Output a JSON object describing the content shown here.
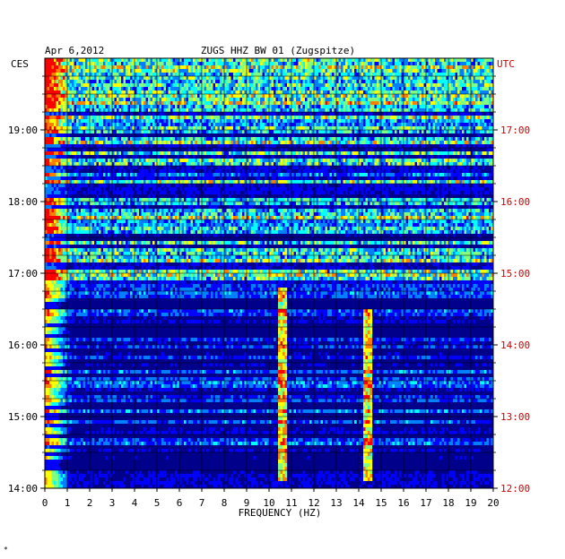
{
  "chart_data": {
    "type": "heatmap",
    "title": "ZUGS HHZ BW 01 (Zugspitze)",
    "date": "Apr 6,2012",
    "xlabel": "FREQUENCY (HZ)",
    "xlim": [
      0,
      20
    ],
    "x_ticks": [
      "0",
      "1",
      "2",
      "3",
      "4",
      "5",
      "6",
      "7",
      "8",
      "9",
      "10",
      "11",
      "12",
      "13",
      "14",
      "15",
      "16",
      "17",
      "18",
      "19",
      "20"
    ],
    "left_axis": {
      "label": "CES",
      "ticks": [
        "14:00",
        "15:00",
        "16:00",
        "17:00",
        "18:00",
        "19:00"
      ],
      "color": "#000000"
    },
    "right_axis": {
      "label": "UTC",
      "ticks": [
        "12:00",
        "13:00",
        "14:00",
        "15:00",
        "16:00",
        "17:00"
      ],
      "color": "#cc0000"
    },
    "time_range_ces_hours": [
      14.0,
      19.9
    ],
    "colormap": [
      "#00008b",
      "#0000ff",
      "#0080ff",
      "#00ffff",
      "#80ff80",
      "#ffff00",
      "#ff8000",
      "#ff0000"
    ],
    "features": [
      {
        "name": "low-frequency noise band",
        "x": [
          0,
          1.2
        ],
        "intensity": "high"
      },
      {
        "name": "signal line",
        "x": [
          10.6,
          10.6
        ],
        "time_ces": [
          14.1,
          16.8
        ],
        "intensity": "medium"
      },
      {
        "name": "signal line",
        "x": [
          14.4,
          14.4
        ],
        "time_ces": [
          14.1,
          16.5
        ],
        "intensity": "medium"
      }
    ],
    "grid": true,
    "footer_mark": "*"
  }
}
